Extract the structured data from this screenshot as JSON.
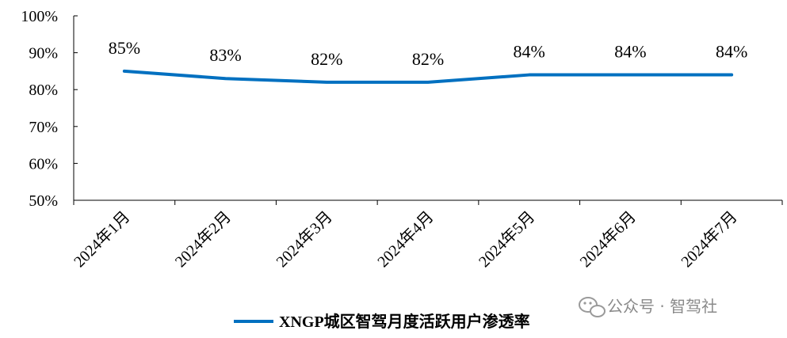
{
  "chart_data": {
    "type": "line",
    "categories": [
      "2024年1月",
      "2024年2月",
      "2024年3月",
      "2024年4月",
      "2024年5月",
      "2024年6月",
      "2024年7月"
    ],
    "series": [
      {
        "name": "XNGP城区智驾月度活跃用户渗透率",
        "values": [
          85,
          83,
          82,
          82,
          84,
          84,
          84
        ],
        "color": "#0070c0"
      }
    ],
    "data_labels": [
      "85%",
      "83%",
      "82%",
      "82%",
      "84%",
      "84%",
      "84%"
    ],
    "yticks": [
      "50%",
      "60%",
      "70%",
      "80%",
      "90%",
      "100%"
    ],
    "ylim": [
      50,
      100
    ],
    "title": "",
    "xlabel": "",
    "ylabel": "",
    "legend_position": "bottom"
  },
  "watermark": {
    "text": "公众号 · 智驾社",
    "icon": "wechat-icon"
  }
}
